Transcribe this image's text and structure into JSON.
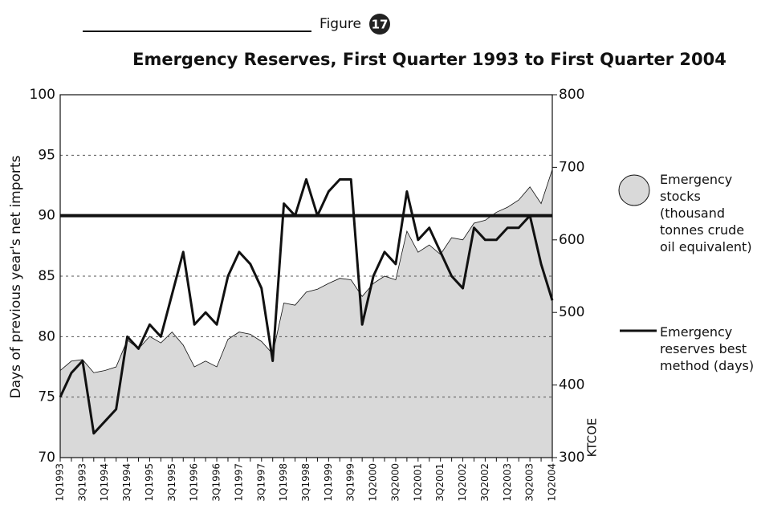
{
  "chart_data": {
    "type": "area-line",
    "figure_label": "Figure",
    "figure_number": "17",
    "title": "Emergency Reserves, First Quarter 1993 to First Quarter 2004",
    "ylabel": "Days of previous year's net imports",
    "y2label": "KTCOE",
    "categories": [
      "1Q1993",
      null,
      "3Q1993",
      null,
      "1Q1994",
      null,
      "3Q1994",
      null,
      "1Q1995",
      null,
      "3Q1995",
      null,
      "1Q1996",
      null,
      "3Q1996",
      null,
      "1Q1997",
      null,
      "3Q1997",
      null,
      "1Q1998",
      null,
      "3Q1998",
      null,
      "1Q1999",
      null,
      "3Q1999",
      null,
      "1Q2000",
      null,
      "3Q2000",
      null,
      "1Q2001",
      null,
      "3Q2001",
      null,
      "1Q2002",
      null,
      "3Q2002",
      null,
      "1Q2003",
      null,
      "3Q2003",
      null,
      "1Q2004"
    ],
    "series": [
      {
        "name": "Emergency stocks (thousand tonnes crude oil equivalent)",
        "kind": "area",
        "axis": "y2",
        "color": "#d9d9d9",
        "values": [
          420,
          433,
          435,
          417,
          420,
          425,
          462,
          450,
          467,
          458,
          473,
          455,
          425,
          433,
          425,
          463,
          473,
          470,
          460,
          443,
          513,
          510,
          528,
          532,
          540,
          547,
          545,
          522,
          540,
          550,
          545,
          612,
          583,
          593,
          580,
          603,
          600,
          623,
          627,
          638,
          645,
          655,
          673,
          650,
          697
        ]
      },
      {
        "name": "Emergency reserves best method (days)",
        "kind": "line",
        "color": "#111111",
        "values": [
          75,
          77,
          78,
          72,
          73,
          74,
          80,
          79,
          81,
          80,
          83.5,
          87,
          81,
          82,
          81,
          85,
          87,
          86,
          84,
          78,
          91,
          90,
          93,
          90,
          92,
          93,
          93,
          81,
          85,
          87,
          86,
          92,
          88,
          89,
          87,
          85,
          84,
          89,
          88,
          88,
          89,
          89,
          90,
          86,
          83
        ]
      }
    ],
    "reference_line": 90,
    "ylim": [
      70,
      100
    ],
    "yticks": [
      70,
      75,
      80,
      85,
      90,
      95,
      100
    ],
    "y2lim": [
      300,
      800
    ],
    "y2ticks": [
      300,
      400,
      500,
      600,
      700,
      800
    ],
    "grid": true
  }
}
